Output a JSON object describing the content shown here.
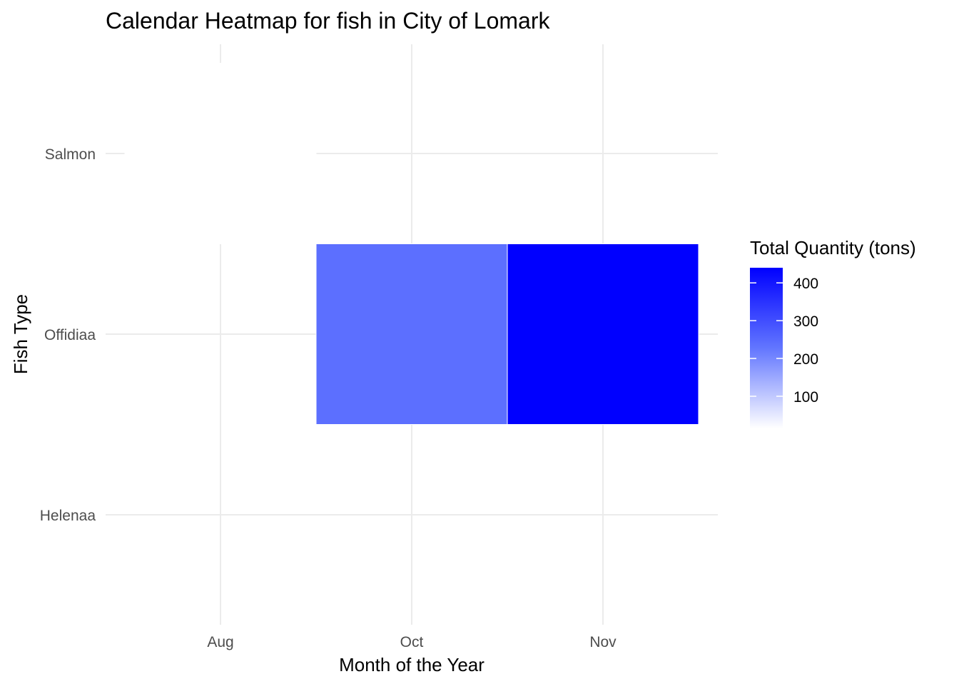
{
  "chart_data": {
    "type": "heatmap",
    "title": "Calendar Heatmap for fish in City of Lomark",
    "xlabel": "Month of the Year",
    "ylabel": "Fish Type",
    "x_categories": [
      "Aug",
      "Oct",
      "Nov"
    ],
    "y_categories": [
      "Salmon",
      "Offidiaa",
      "Helenaa"
    ],
    "cells": [
      {
        "x": "Aug",
        "y": "Salmon",
        "value": 15
      },
      {
        "x": "Oct",
        "y": "Offidiaa",
        "value": 240
      },
      {
        "x": "Nov",
        "y": "Offidiaa",
        "value": 440
      }
    ],
    "legend": {
      "title": "Total Quantity (tons)",
      "ticks": [
        100,
        200,
        300,
        400
      ],
      "range": [
        15,
        440
      ],
      "low_color": "#ffffff",
      "high_color": "#0000ff",
      "position": "right"
    },
    "grid": true
  }
}
